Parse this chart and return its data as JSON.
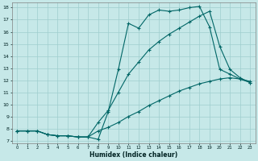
{
  "xlabel": "Humidex (Indice chaleur)",
  "ylabel": "",
  "xlim": [
    -0.5,
    23.5
  ],
  "ylim": [
    6.8,
    18.4
  ],
  "xticks": [
    0,
    1,
    2,
    3,
    4,
    5,
    6,
    7,
    8,
    9,
    10,
    11,
    12,
    13,
    14,
    15,
    16,
    17,
    18,
    19,
    20,
    21,
    22,
    23
  ],
  "yticks": [
    7,
    8,
    9,
    10,
    11,
    12,
    13,
    14,
    15,
    16,
    17,
    18
  ],
  "bg_color": "#c6e8e8",
  "line_color": "#006666",
  "grid_color": "#9ecece",
  "curves": [
    {
      "x": [
        0,
        1,
        2,
        3,
        4,
        5,
        6,
        7,
        8,
        9,
        10,
        11,
        12,
        13,
        14,
        15,
        16,
        17,
        18,
        19,
        20,
        21,
        22,
        23
      ],
      "y": [
        7.8,
        7.8,
        7.8,
        7.5,
        7.4,
        7.4,
        7.3,
        7.3,
        7.1,
        9.4,
        12.9,
        16.7,
        16.3,
        17.4,
        17.8,
        17.7,
        17.8,
        18.0,
        18.1,
        16.4,
        12.9,
        12.5,
        12.1,
        11.8
      ]
    },
    {
      "x": [
        0,
        1,
        2,
        3,
        4,
        5,
        6,
        7,
        8,
        9,
        10,
        11,
        12,
        13,
        14,
        15,
        16,
        17,
        18,
        19,
        20,
        21,
        22,
        23
      ],
      "y": [
        7.8,
        7.8,
        7.8,
        7.5,
        7.4,
        7.4,
        7.3,
        7.3,
        8.5,
        9.5,
        11.0,
        12.5,
        13.5,
        14.5,
        15.2,
        15.8,
        16.3,
        16.8,
        17.3,
        17.7,
        14.8,
        12.9,
        12.2,
        11.8
      ]
    },
    {
      "x": [
        0,
        1,
        2,
        3,
        4,
        5,
        6,
        7,
        8,
        9,
        10,
        11,
        12,
        13,
        14,
        15,
        16,
        17,
        18,
        19,
        20,
        21,
        22,
        23
      ],
      "y": [
        7.8,
        7.8,
        7.8,
        7.5,
        7.4,
        7.4,
        7.3,
        7.3,
        7.8,
        8.1,
        8.5,
        9.0,
        9.4,
        9.9,
        10.3,
        10.7,
        11.1,
        11.4,
        11.7,
        11.9,
        12.1,
        12.2,
        12.1,
        11.9
      ]
    }
  ]
}
